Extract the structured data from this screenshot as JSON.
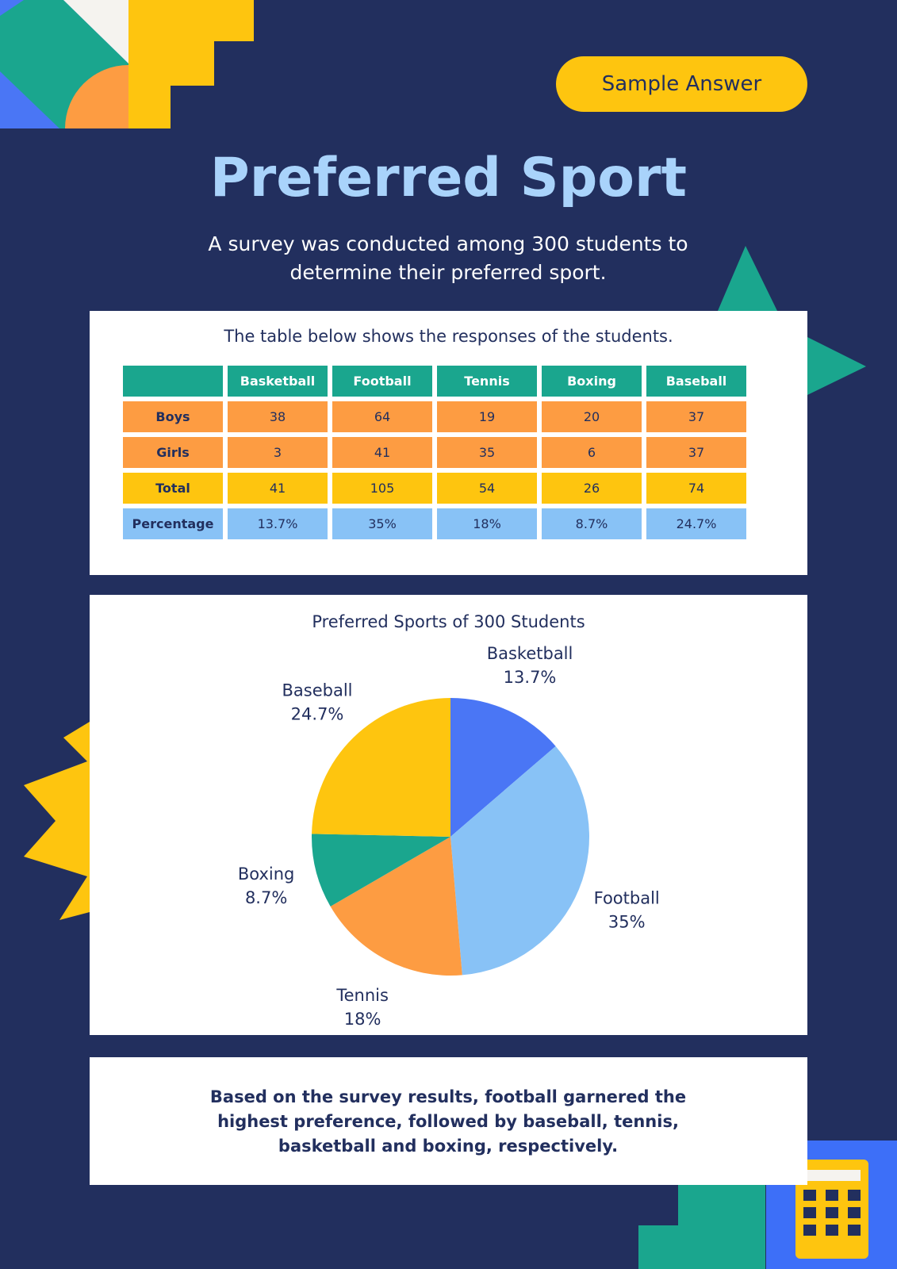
{
  "badge": "Sample Answer",
  "title": "Preferred Sport",
  "subtitle": "A survey was conducted among 300 students to determine their preferred sport.",
  "table": {
    "caption": "The table below shows the responses of the students.",
    "columns": [
      "Basketball",
      "Football",
      "Tennis",
      "Boxing",
      "Baseball"
    ],
    "rows": [
      {
        "label": "Boys",
        "cells": [
          38,
          64,
          19,
          20,
          37
        ]
      },
      {
        "label": "Girls",
        "cells": [
          3,
          41,
          35,
          6,
          37
        ]
      },
      {
        "label": "Total",
        "cells": [
          41,
          105,
          54,
          26,
          74
        ]
      },
      {
        "label": "Percentage",
        "cells": [
          "13.7%",
          "35%",
          "18%",
          "8.7%",
          "24.7%"
        ]
      }
    ]
  },
  "chart_data": {
    "type": "pie",
    "title": "Preferred Sports of 300 Students",
    "categories": [
      "Basketball",
      "Football",
      "Tennis",
      "Boxing",
      "Baseball"
    ],
    "values": [
      13.7,
      35,
      18,
      8.7,
      24.7
    ],
    "value_labels": [
      "13.7%",
      "35%",
      "18%",
      "8.7%",
      "24.7%"
    ],
    "colors": [
      "#4a76f5",
      "#88c2f6",
      "#fd9c42",
      "#1aa68e",
      "#fec50f"
    ]
  },
  "conclusion": "Based on the survey results, football garnered the highest preference, followed by baseball, tennis, basketball and boxing, respectively."
}
